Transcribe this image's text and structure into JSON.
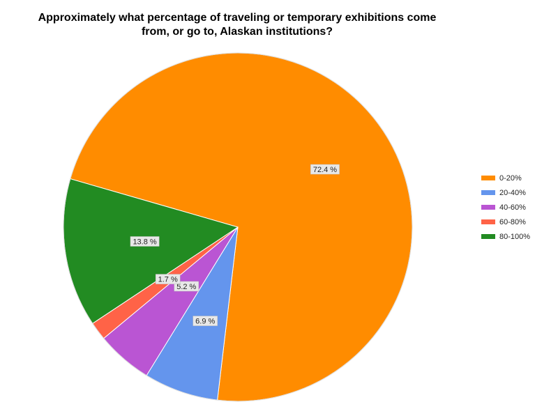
{
  "chart_data": {
    "type": "pie",
    "title_lines": [
      "Approximately what percentage of traveling or temporary exhibitions come",
      "from, or go to, Alaskan institutions?"
    ],
    "categories": [
      "0-20%",
      "20-40%",
      "40-60%",
      "60-80%",
      "80-100%"
    ],
    "values": [
      72.4,
      6.9,
      5.2,
      1.7,
      13.8
    ],
    "labels": [
      "72.4 %",
      "6.9 %",
      "5.2 %",
      "1.7 %",
      "13.8 %"
    ],
    "colors": [
      "#ff8c00",
      "#6495ed",
      "#ba55d3",
      "#ff6347",
      "#228b22"
    ],
    "legend_position": "right"
  }
}
